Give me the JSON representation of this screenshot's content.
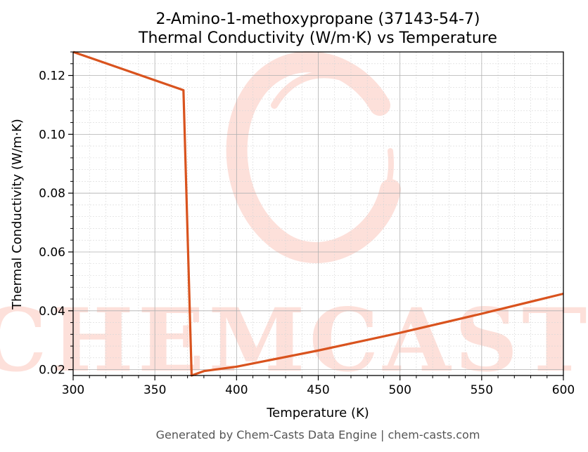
{
  "chart_data": {
    "type": "line",
    "title": "2-Amino-1-methoxypropane (37143-54-7)",
    "subtitle": "Thermal Conductivity (W/m·K) vs Temperature",
    "xlabel": "Temperature (K)",
    "ylabel": "Thermal Conductivity (W/m·K)",
    "xlim": [
      300,
      600
    ],
    "ylim": [
      0.018,
      0.128
    ],
    "xticks": [
      300,
      350,
      400,
      450,
      500,
      550,
      600
    ],
    "xtick_labels": [
      "300",
      "350",
      "400",
      "450",
      "500",
      "550",
      "600"
    ],
    "yticks": [
      0.02,
      0.04,
      0.06,
      0.08,
      0.1,
      0.12
    ],
    "ytick_labels": [
      "0.02",
      "0.04",
      "0.06",
      "0.08",
      "0.10",
      "0.12"
    ],
    "grid": true,
    "series": [
      {
        "color": "#d9531e",
        "x": [
          300,
          367.5,
          372.5,
          380,
          400,
          450,
          500,
          550,
          600
        ],
        "y": [
          0.128,
          0.115,
          0.018,
          0.0195,
          0.021,
          0.0265,
          0.0325,
          0.039,
          0.0458
        ]
      }
    ],
    "watermark": {
      "text": "CHEMCASTS",
      "color": "#fde0da"
    }
  },
  "footer": "Generated by Chem-Casts Data Engine | chem-casts.com"
}
